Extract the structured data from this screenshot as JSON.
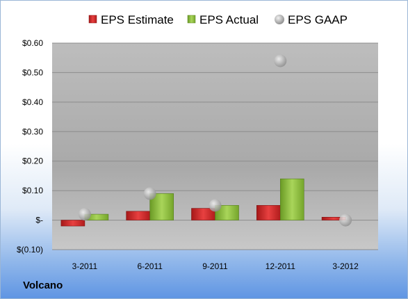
{
  "chart_data": {
    "type": "bar",
    "categories": [
      "3-2011",
      "6-2011",
      "9-2011",
      "12-2011",
      "3-2012"
    ],
    "series": [
      {
        "name": "EPS Estimate",
        "kind": "bar",
        "color": "#d42a2a",
        "values": [
          -0.02,
          0.03,
          0.04,
          0.05,
          0.01
        ]
      },
      {
        "name": "EPS Actual",
        "kind": "bar",
        "color": "#8fbf3a",
        "values": [
          0.02,
          0.09,
          0.05,
          0.14,
          null
        ]
      },
      {
        "name": "EPS GAAP",
        "kind": "marker",
        "color": "#b9b9b9",
        "values": [
          0.02,
          0.09,
          0.05,
          0.54,
          0.0
        ]
      }
    ],
    "yticks": [
      {
        "value": 0.6,
        "label": "$0.60"
      },
      {
        "value": 0.5,
        "label": "$0.50"
      },
      {
        "value": 0.4,
        "label": "$0.40"
      },
      {
        "value": 0.3,
        "label": "$0.30"
      },
      {
        "value": 0.2,
        "label": "$0.20"
      },
      {
        "value": 0.1,
        "label": "$0.10"
      },
      {
        "value": 0.0,
        "label": "$-"
      },
      {
        "value": -0.1,
        "label": "$(0.10)"
      }
    ],
    "ylim": [
      -0.1,
      0.6
    ],
    "grid": true,
    "legend": "top",
    "caption": "Volcano"
  }
}
